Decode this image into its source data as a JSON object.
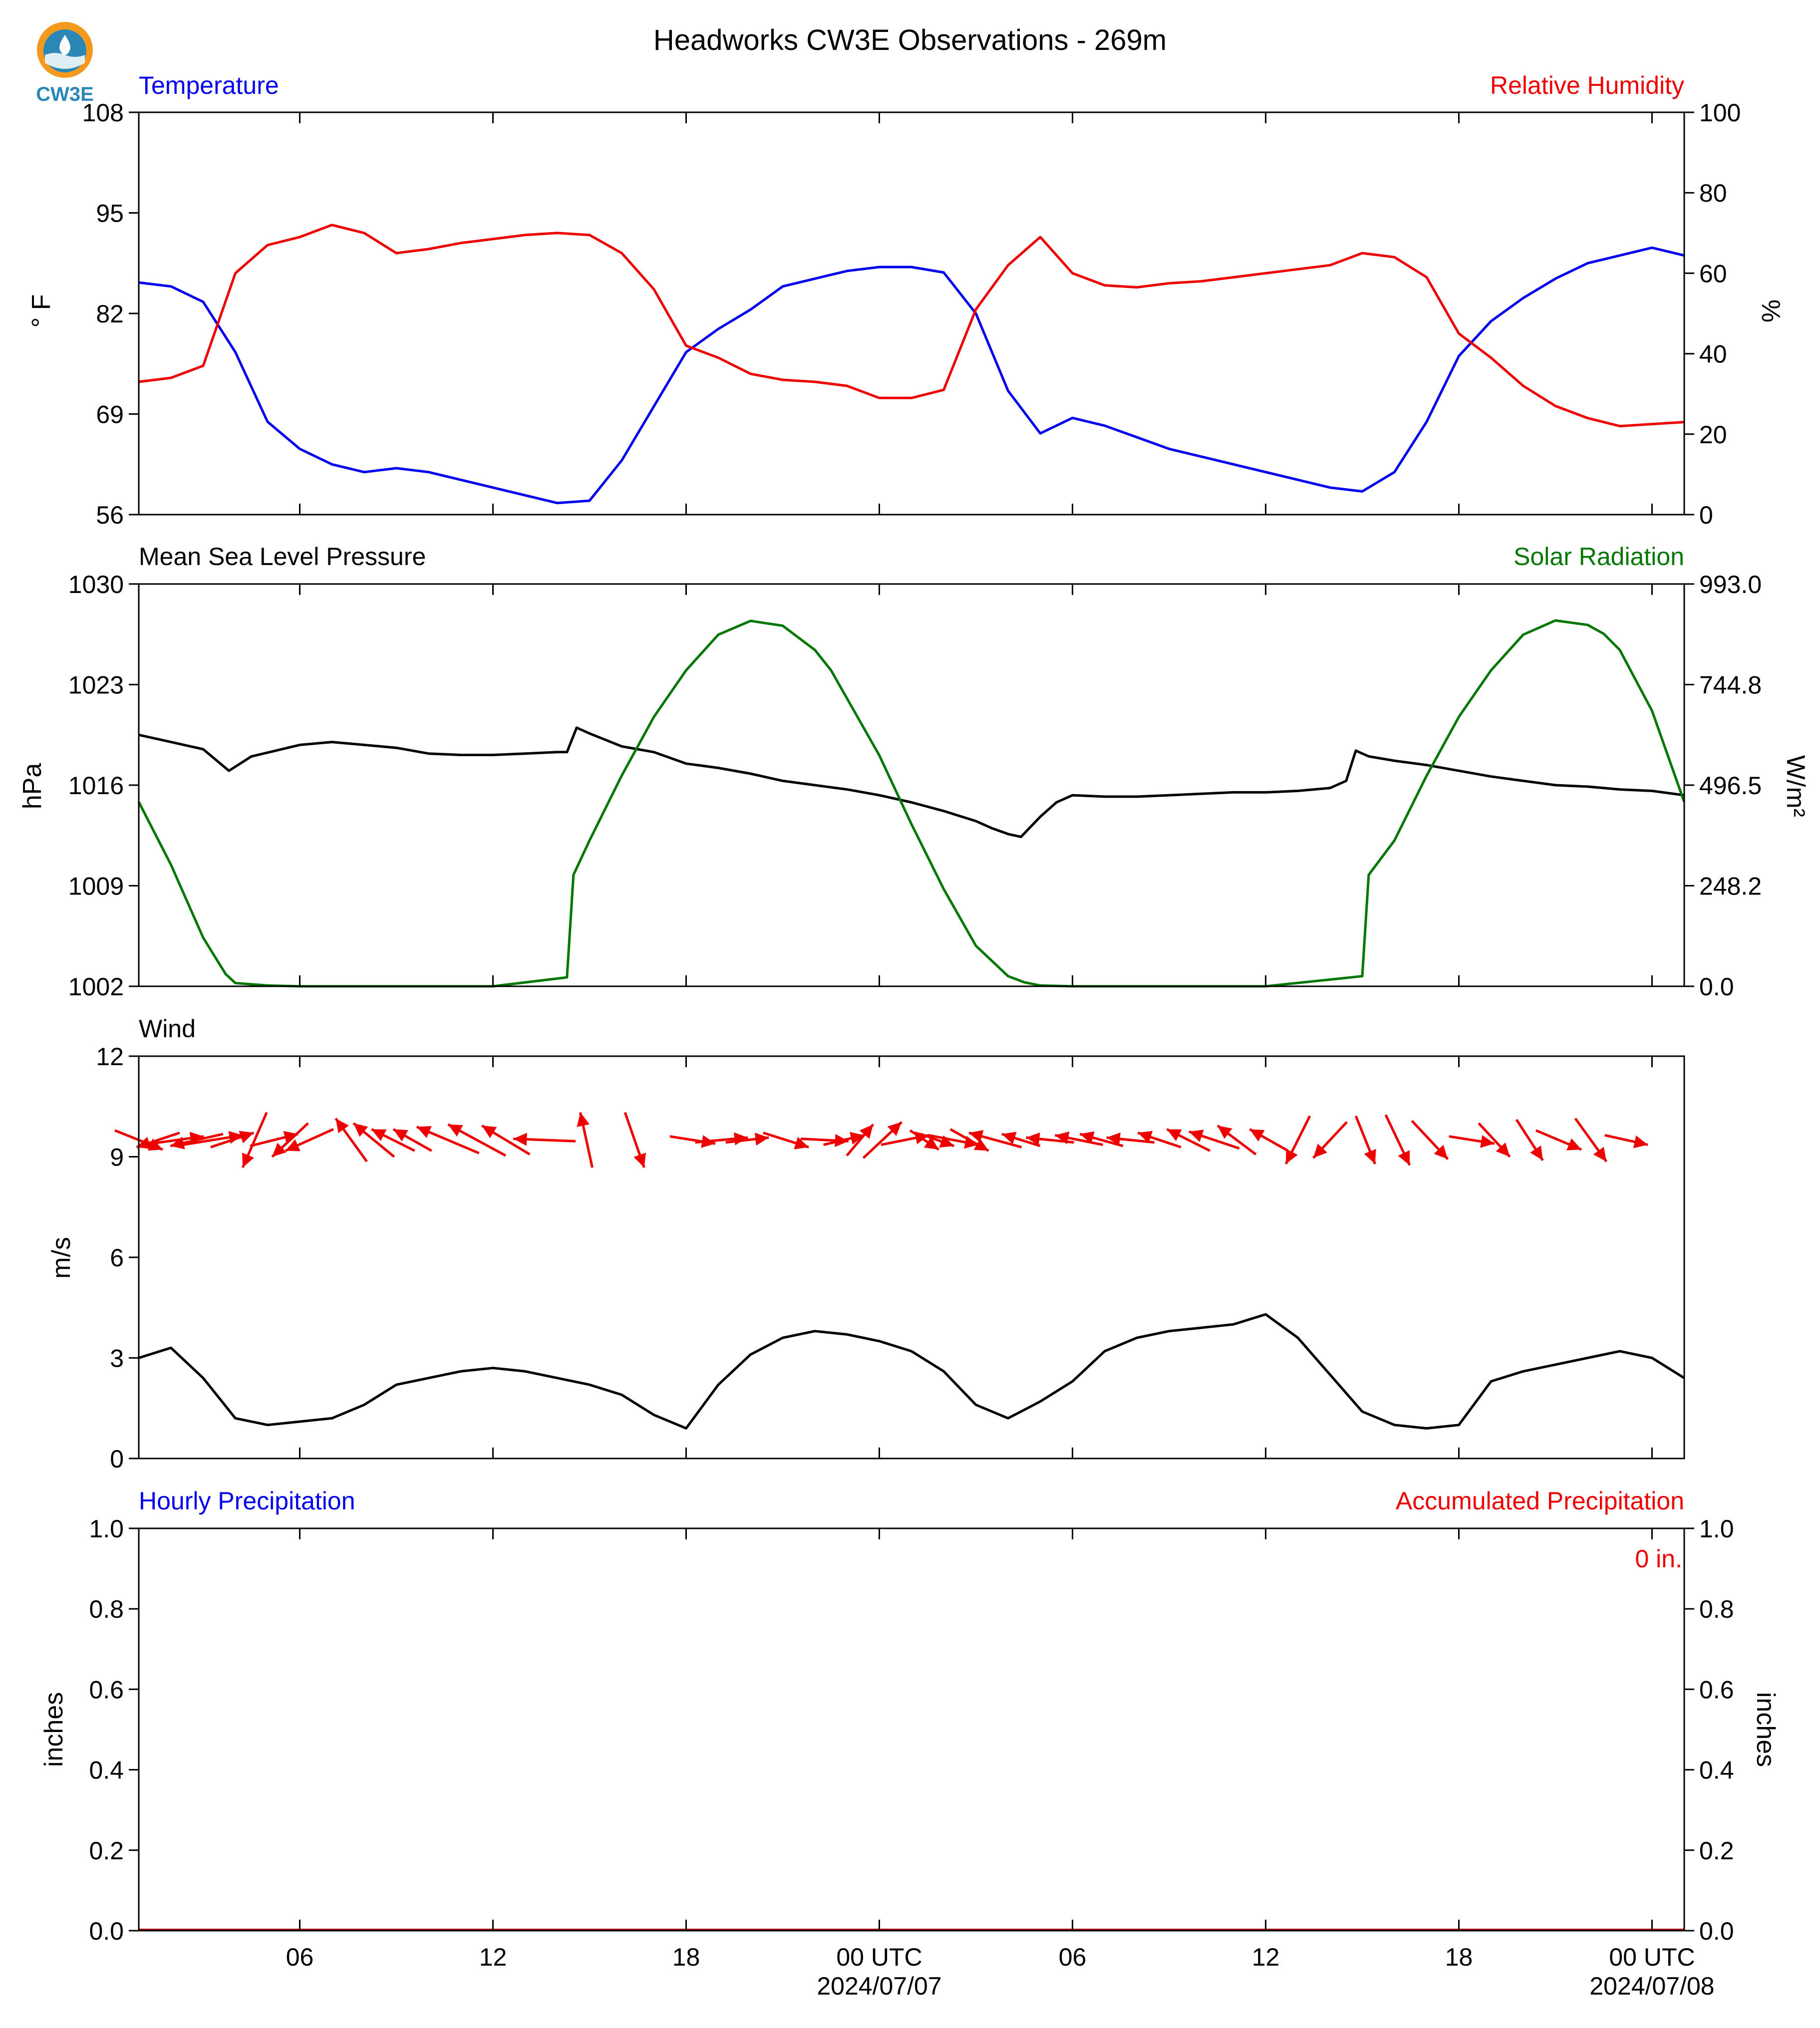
{
  "logo": {
    "text": "CW3E"
  },
  "chart_data": {
    "title": "Headworks CW3E Observations - 269m",
    "time_axis": {
      "start": "2024-07-06 01:00 UTC",
      "end": "2024-07-08 01:00 UTC",
      "tick_hours": [
        6,
        12,
        18,
        24,
        30,
        36,
        42,
        48
      ],
      "tick_labels": [
        "06",
        "12",
        "18",
        "00 UTC",
        "06",
        "12",
        "18",
        "00 UTC"
      ],
      "date_labels": [
        "2024/07/07",
        "2024/07/08"
      ]
    },
    "panels": [
      {
        "type": "line",
        "left_title": "Temperature",
        "right_title": "Relative Humidity",
        "ylabel": "° F",
        "ylabel_right": "%",
        "ylim": [
          56,
          108
        ],
        "ylim_right": [
          0,
          100
        ],
        "yticks": [
          "56",
          "69",
          "82",
          "95",
          "108"
        ],
        "yticks_right": [
          "0",
          "20",
          "40",
          "60",
          "80",
          "100"
        ],
        "series": [
          {
            "name": "Temperature",
            "color": "#0000ee",
            "axis": "left",
            "x": [
              1,
              2,
              3,
              4,
              5,
              6,
              7,
              8,
              9,
              10,
              11,
              12,
              13,
              14,
              15,
              16,
              17,
              18,
              19,
              20,
              21,
              22,
              23,
              24,
              25,
              26,
              27,
              28,
              29,
              30,
              31,
              32,
              33,
              34,
              35,
              36,
              37,
              38,
              39,
              40,
              41,
              42,
              43,
              44,
              45,
              46,
              47,
              48,
              49
            ],
            "y": [
              86,
              85.5,
              83.5,
              77,
              68,
              64.5,
              62.5,
              61.5,
              62,
              61.5,
              60.5,
              59.5,
              58.5,
              57.5,
              57.8,
              63,
              70,
              77,
              80,
              82.5,
              85.5,
              86.5,
              87.5,
              88,
              88,
              87.3,
              82,
              72,
              66.5,
              68.5,
              67.5,
              66,
              64.5,
              63.5,
              62.5,
              61.5,
              60.5,
              59.5,
              59,
              61.5,
              68,
              76.5,
              81,
              84,
              86.5,
              88.5,
              89.5,
              90.5,
              89.5
            ]
          },
          {
            "name": "Relative Humidity",
            "color": "#ee0000",
            "axis": "right",
            "x": [
              1,
              2,
              3,
              4,
              5,
              6,
              7,
              8,
              9,
              10,
              11,
              12,
              13,
              14,
              15,
              16,
              17,
              18,
              19,
              20,
              21,
              22,
              23,
              24,
              25,
              26,
              27,
              28,
              29,
              30,
              31,
              32,
              33,
              34,
              35,
              36,
              37,
              38,
              39,
              40,
              41,
              42,
              43,
              44,
              45,
              46,
              47,
              48,
              49
            ],
            "y": [
              33,
              34,
              37,
              60,
              67,
              69,
              72,
              70,
              65,
              66,
              67.5,
              68.5,
              69.5,
              70,
              69.5,
              65,
              56,
              42,
              39,
              35,
              33.5,
              33,
              32,
              29,
              29,
              31,
              51,
              62,
              69,
              60,
              57,
              56.5,
              57.5,
              58,
              59,
              60,
              61,
              62,
              65,
              64,
              59,
              45,
              39,
              32,
              27,
              24,
              22,
              22.5,
              23
            ]
          }
        ]
      },
      {
        "type": "line",
        "left_title": "Mean Sea Level Pressure",
        "right_title": "Solar Radiation",
        "ylabel": "hPa",
        "ylabel_right": "W/m²",
        "ylim": [
          1002,
          1030
        ],
        "ylim_right": [
          0,
          993
        ],
        "yticks": [
          "1002",
          "1009",
          "1016",
          "1023",
          "1030"
        ],
        "yticks_right": [
          "0.0",
          "248.2",
          "496.5",
          "744.8",
          "993.0"
        ],
        "series": [
          {
            "name": "Mean Sea Level Pressure",
            "color": "#000000",
            "axis": "left",
            "x": [
              1,
              2,
              3,
              3.8,
              4.5,
              6,
              7,
              8,
              9,
              10,
              11,
              12,
              13,
              14,
              14.3,
              14.6,
              15,
              16,
              17,
              18,
              19,
              20,
              21,
              22,
              23,
              24,
              25,
              26,
              27,
              27.5,
              28,
              28.4,
              29,
              29.5,
              30,
              31,
              32,
              33,
              34,
              35,
              36,
              37,
              38,
              38.5,
              38.8,
              39.2,
              40,
              41,
              42,
              43,
              44,
              45,
              46,
              47,
              48,
              49
            ],
            "y": [
              1019.5,
              1019,
              1018.5,
              1017,
              1018,
              1018.8,
              1019,
              1018.8,
              1018.6,
              1018.2,
              1018.1,
              1018.1,
              1018.2,
              1018.3,
              1018.3,
              1020,
              1019.6,
              1018.7,
              1018.3,
              1017.5,
              1017.2,
              1016.8,
              1016.3,
              1016,
              1015.7,
              1015.3,
              1014.8,
              1014.2,
              1013.5,
              1013,
              1012.6,
              1012.4,
              1013.8,
              1014.8,
              1015.3,
              1015.2,
              1015.2,
              1015.3,
              1015.4,
              1015.5,
              1015.5,
              1015.6,
              1015.8,
              1016.3,
              1018.4,
              1018,
              1017.7,
              1017.4,
              1017,
              1016.6,
              1016.3,
              1016,
              1015.9,
              1015.7,
              1015.6,
              1015.3
            ]
          },
          {
            "name": "Solar Radiation",
            "color": "#007700",
            "axis": "right",
            "x": [
              1,
              2,
              3,
              3.7,
              4,
              5,
              6,
              7,
              8,
              9,
              10,
              11,
              12,
              14.3,
              14.5,
              15,
              16,
              17,
              18,
              19,
              20,
              21,
              22,
              22.5,
              23,
              24,
              25,
              26,
              27,
              28,
              28.5,
              29,
              30,
              31,
              32,
              33,
              34,
              35,
              36,
              39,
              39.2,
              40,
              41,
              42,
              43,
              44,
              45,
              46,
              46.5,
              47,
              48,
              49
            ],
            "y": [
              455,
              300,
              120,
              30,
              8,
              2,
              0,
              0,
              0,
              0,
              0,
              0,
              0,
              22,
              275,
              360,
              520,
              665,
              780,
              868,
              902,
              890,
              830,
              780,
              710,
              570,
              400,
              240,
              100,
              25,
              10,
              2,
              0,
              0,
              0,
              0,
              0,
              0,
              0,
              25,
              275,
              360,
              520,
              665,
              780,
              868,
              903,
              892,
              870,
              830,
              680,
              455
            ]
          }
        ]
      },
      {
        "type": "line",
        "left_title": "Wind",
        "ylabel": "m/s",
        "ylim": [
          0,
          12
        ],
        "yticks": [
          "0",
          "3",
          "6",
          "9",
          "12"
        ],
        "series": [
          {
            "name": "Wind",
            "color": "#000000",
            "axis": "left",
            "x": [
              1,
              2,
              3,
              4,
              5,
              6,
              7,
              8,
              9,
              10,
              11,
              12,
              13,
              14,
              15,
              16,
              17,
              18,
              19,
              20,
              21,
              22,
              23,
              24,
              25,
              26,
              27,
              28,
              29,
              30,
              31,
              32,
              33,
              34,
              35,
              36,
              37,
              38,
              39,
              40,
              41,
              42,
              43,
              44,
              45,
              46,
              47,
              48,
              49
            ],
            "y": [
              3,
              3.3,
              2.4,
              1.2,
              1,
              1.1,
              1.2,
              1.6,
              2.2,
              2.4,
              2.6,
              2.7,
              2.6,
              2.4,
              2.2,
              1.9,
              1.3,
              0.9,
              2.2,
              3.1,
              3.6,
              3.8,
              3.7,
              3.5,
              3.2,
              2.6,
              1.6,
              1.2,
              1.7,
              2.3,
              3.2,
              3.6,
              3.8,
              3.9,
              4,
              4.3,
              3.6,
              2.5,
              1.4,
              1,
              0.9,
              1,
              2.3,
              2.6,
              2.8,
              3,
              3.2,
              3,
              2.4
            ]
          }
        ]
      },
      {
        "type": "bar",
        "left_title": "Hourly Precipitation",
        "right_title": "Accumulated Precipitation",
        "ylabel": "inches",
        "ylabel_right": "inches",
        "ylim": [
          0,
          1
        ],
        "ylim_right": [
          0,
          1
        ],
        "yticks": [
          "0.0",
          "0.2",
          "0.4",
          "0.6",
          "0.8",
          "1.0"
        ],
        "yticks_right": [
          "0.0",
          "0.2",
          "0.4",
          "0.6",
          "0.8",
          "1.0"
        ],
        "annotation": "0 in.",
        "series": [
          {
            "name": "Hourly Precipitation",
            "color": "#0000ee",
            "axis": "left",
            "values": [
              0
            ]
          },
          {
            "name": "Accumulated Precipitation",
            "color": "#aa0000",
            "axis": "right",
            "values": [
              0
            ]
          }
        ]
      }
    ],
    "wind_barbs": {
      "color": "#ee0000",
      "items": [
        {
          "t": 1.0,
          "u": 2.0,
          "v": -0.8
        },
        {
          "t": 1.6,
          "u": -1.8,
          "v": -0.6
        },
        {
          "t": 2.2,
          "u": 2.2,
          "v": 0.3
        },
        {
          "t": 2.8,
          "u": -2.2,
          "v": -0.5
        },
        {
          "t": 3.3,
          "u": 2.5,
          "v": 0.4
        },
        {
          "t": 3.9,
          "u": 1.8,
          "v": 0.6
        },
        {
          "t": 4.6,
          "u": -1.0,
          "v": -2.3
        },
        {
          "t": 5.2,
          "u": 2.0,
          "v": 0.5
        },
        {
          "t": 5.7,
          "u": -1.5,
          "v": -1.4
        },
        {
          "t": 6.3,
          "u": -2.0,
          "v": -0.9
        },
        {
          "t": 7.6,
          "u": -1.3,
          "v": 1.8
        },
        {
          "t": 8.3,
          "u": -1.7,
          "v": 1.4
        },
        {
          "t": 8.9,
          "u": -1.8,
          "v": 0.9
        },
        {
          "t": 9.5,
          "u": -1.6,
          "v": 0.9
        },
        {
          "t": 10.6,
          "u": -2.6,
          "v": 1.1
        },
        {
          "t": 11.5,
          "u": -2.4,
          "v": 1.3
        },
        {
          "t": 12.4,
          "u": -2.0,
          "v": 1.2
        },
        {
          "t": 13.6,
          "u": -2.6,
          "v": 0.1
        },
        {
          "t": 14.9,
          "u": -0.5,
          "v": 2.3
        },
        {
          "t": 16.4,
          "u": 0.8,
          "v": -2.3
        },
        {
          "t": 18.2,
          "u": 1.9,
          "v": -0.3
        },
        {
          "t": 19.1,
          "u": 2.2,
          "v": 0.2
        },
        {
          "t": 19.9,
          "u": 1.8,
          "v": 0.2
        },
        {
          "t": 21.1,
          "u": 1.9,
          "v": -0.6
        },
        {
          "t": 22.3,
          "u": 2.0,
          "v": -0.1
        },
        {
          "t": 22.9,
          "u": 1.7,
          "v": 0.4
        },
        {
          "t": 23.4,
          "u": 1.1,
          "v": 1.3
        },
        {
          "t": 24.1,
          "u": 1.6,
          "v": 1.5
        },
        {
          "t": 24.8,
          "u": 2.0,
          "v": 0.4
        },
        {
          "t": 25.4,
          "u": 1.2,
          "v": -0.8
        },
        {
          "t": 25.8,
          "u": 1.4,
          "v": -0.5
        },
        {
          "t": 26.3,
          "u": 2.1,
          "v": -0.4
        },
        {
          "t": 26.8,
          "u": 1.6,
          "v": -0.9
        },
        {
          "t": 27.6,
          "u": -2.2,
          "v": 0.6
        },
        {
          "t": 28.4,
          "u": -1.6,
          "v": 0.5
        },
        {
          "t": 29.3,
          "u": -2.0,
          "v": 0.2
        },
        {
          "t": 30.2,
          "u": -2.0,
          "v": 0.4
        },
        {
          "t": 30.9,
          "u": -1.8,
          "v": 0.5
        },
        {
          "t": 31.8,
          "u": -2.0,
          "v": 0.2
        },
        {
          "t": 32.7,
          "u": -1.8,
          "v": 0.6
        },
        {
          "t": 33.6,
          "u": -1.8,
          "v": 0.9
        },
        {
          "t": 34.4,
          "u": -2.1,
          "v": 0.7
        },
        {
          "t": 35.1,
          "u": -1.6,
          "v": 1.2
        },
        {
          "t": 36.1,
          "u": -1.6,
          "v": 0.9
        },
        {
          "t": 37.0,
          "u": -1.0,
          "v": -2.0
        },
        {
          "t": 38.0,
          "u": -1.4,
          "v": -1.5
        },
        {
          "t": 39.1,
          "u": 0.8,
          "v": -2.0
        },
        {
          "t": 40.1,
          "u": 1.0,
          "v": -2.1
        },
        {
          "t": 41.1,
          "u": 1.5,
          "v": -1.6
        },
        {
          "t": 42.4,
          "u": 1.9,
          "v": -0.3
        },
        {
          "t": 43.1,
          "u": 1.3,
          "v": -1.4
        },
        {
          "t": 44.2,
          "u": 1.1,
          "v": -1.7
        },
        {
          "t": 45.1,
          "u": 1.9,
          "v": -0.8
        },
        {
          "t": 46.1,
          "u": 1.3,
          "v": -1.8
        },
        {
          "t": 47.2,
          "u": 1.8,
          "v": -0.4
        }
      ]
    }
  }
}
